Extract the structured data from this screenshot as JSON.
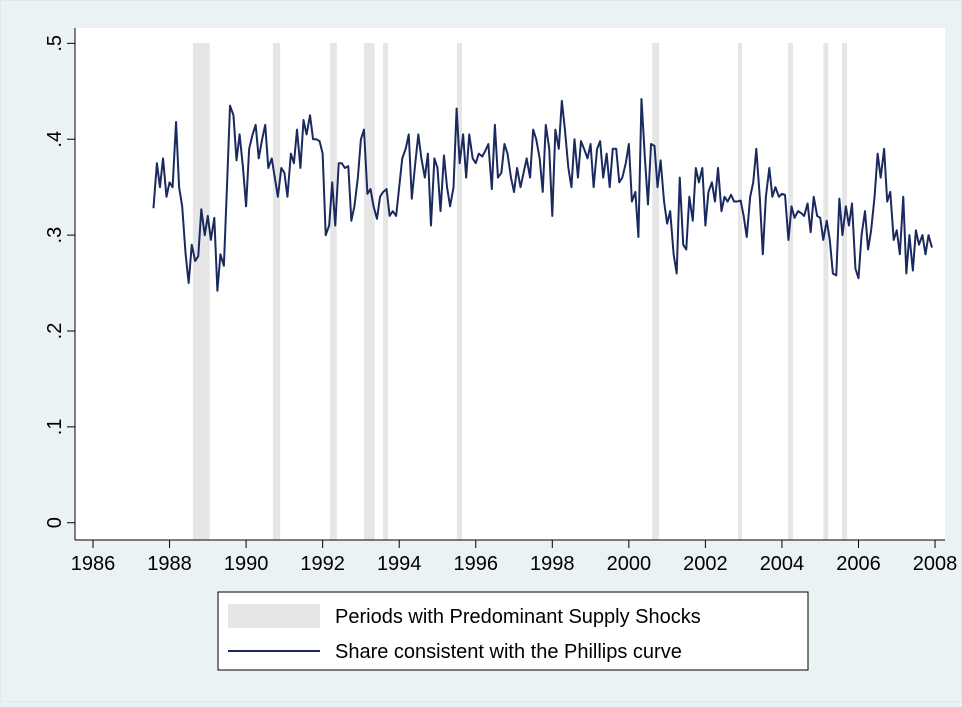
{
  "chart_data": {
    "type": "line",
    "xlim": [
      1985.53,
      2008.26
    ],
    "ylim": [
      -0.018,
      0.516
    ],
    "xticks": [
      1986,
      1988,
      1990,
      1992,
      1994,
      1996,
      1998,
      2000,
      2002,
      2004,
      2006,
      2008
    ],
    "yticks": [
      0,
      {
        "value": 0.1,
        "label": ".1"
      },
      {
        "value": 0.2,
        "label": ".2"
      },
      {
        "value": 0.3,
        "label": ".3"
      },
      {
        "value": 0.4,
        "label": ".4"
      },
      {
        "value": 0.5,
        "label": ".5"
      }
    ],
    "shaded": {
      "name": "Periods with Predominant Supply Shocks",
      "color": "#e6e6e6",
      "periods": [
        [
          1988.61,
          1989.05
        ],
        [
          1990.7,
          1990.89
        ],
        [
          1992.19,
          1992.37
        ],
        [
          1993.08,
          1993.36
        ],
        [
          1993.58,
          1993.71
        ],
        [
          1995.51,
          1995.64
        ],
        [
          2000.61,
          2000.79
        ],
        [
          2002.85,
          2002.96
        ],
        [
          2004.16,
          2004.29
        ],
        [
          2005.08,
          2005.21
        ],
        [
          2005.57,
          2005.7
        ]
      ]
    },
    "x": [
      1987.58,
      1987.67,
      1987.75,
      1987.83,
      1987.92,
      1988.0,
      1988.08,
      1988.17,
      1988.25,
      1988.33,
      1988.42,
      1988.5,
      1988.58,
      1988.67,
      1988.75,
      1988.83,
      1988.92,
      1989.0,
      1989.08,
      1989.17,
      1989.25,
      1989.33,
      1989.42,
      1989.5,
      1989.58,
      1989.67,
      1989.75,
      1989.83,
      1989.92,
      1990.0,
      1990.08,
      1990.17,
      1990.25,
      1990.33,
      1990.42,
      1990.5,
      1990.58,
      1990.67,
      1990.75,
      1990.83,
      1990.92,
      1991.0,
      1991.08,
      1991.17,
      1991.25,
      1991.33,
      1991.42,
      1991.5,
      1991.58,
      1991.67,
      1991.75,
      1991.83,
      1991.92,
      1992.0,
      1992.08,
      1992.17,
      1992.25,
      1992.33,
      1992.42,
      1992.5,
      1992.58,
      1992.67,
      1992.75,
      1992.83,
      1992.92,
      1993.0,
      1993.08,
      1993.17,
      1993.25,
      1993.33,
      1993.42,
      1993.5,
      1993.58,
      1993.67,
      1993.75,
      1993.83,
      1993.92,
      1994.0,
      1994.08,
      1994.17,
      1994.25,
      1994.33,
      1994.42,
      1994.5,
      1994.58,
      1994.67,
      1994.75,
      1994.83,
      1994.92,
      1995.0,
      1995.08,
      1995.17,
      1995.25,
      1995.33,
      1995.42,
      1995.5,
      1995.58,
      1995.67,
      1995.75,
      1995.83,
      1995.92,
      1996.0,
      1996.08,
      1996.17,
      1996.25,
      1996.33,
      1996.42,
      1996.5,
      1996.58,
      1996.67,
      1996.75,
      1996.83,
      1996.92,
      1997.0,
      1997.08,
      1997.17,
      1997.25,
      1997.33,
      1997.42,
      1997.5,
      1997.58,
      1997.67,
      1997.75,
      1997.83,
      1997.92,
      1998.0,
      1998.08,
      1998.17,
      1998.25,
      1998.33,
      1998.42,
      1998.5,
      1998.58,
      1998.67,
      1998.75,
      1998.83,
      1998.92,
      1999.0,
      1999.08,
      1999.17,
      1999.25,
      1999.33,
      1999.42,
      1999.5,
      1999.58,
      1999.67,
      1999.75,
      1999.83,
      1999.92,
      2000.0,
      2000.08,
      2000.17,
      2000.25,
      2000.33,
      2000.42,
      2000.5,
      2000.58,
      2000.67,
      2000.75,
      2000.83,
      2000.92,
      2001.0,
      2001.08,
      2001.17,
      2001.25,
      2001.33,
      2001.42,
      2001.5,
      2001.58,
      2001.67,
      2001.75,
      2001.83,
      2001.92,
      2002.0,
      2002.08,
      2002.17,
      2002.25,
      2002.33,
      2002.42,
      2002.5,
      2002.58,
      2002.67,
      2002.75,
      2002.83,
      2002.92,
      2003.0,
      2003.08,
      2003.17,
      2003.25,
      2003.33,
      2003.42,
      2003.5,
      2003.58,
      2003.67,
      2003.75,
      2003.83,
      2003.92,
      2004.0,
      2004.08,
      2004.17,
      2004.25,
      2004.33,
      2004.42,
      2004.5,
      2004.58,
      2004.67,
      2004.75,
      2004.83,
      2004.92,
      2005.0,
      2005.08,
      2005.17,
      2005.25,
      2005.33,
      2005.42,
      2005.5,
      2005.58,
      2005.67,
      2005.75,
      2005.83,
      2005.92,
      2006.0,
      2006.08,
      2006.17,
      2006.25,
      2006.33,
      2006.42,
      2006.5,
      2006.58,
      2006.67,
      2006.75,
      2006.83,
      2006.92,
      2007.0,
      2007.08,
      2007.17,
      2007.25,
      2007.33,
      2007.42,
      2007.5,
      2007.58,
      2007.67,
      2007.75,
      2007.83,
      2007.92
    ],
    "series": [
      {
        "name": "Share consistent with the Phillips curve",
        "color": "#1a2a5e",
        "values": [
          0.328,
          0.375,
          0.35,
          0.38,
          0.34,
          0.355,
          0.35,
          0.418,
          0.35,
          0.33,
          0.28,
          0.25,
          0.29,
          0.273,
          0.278,
          0.327,
          0.3,
          0.32,
          0.295,
          0.318,
          0.242,
          0.28,
          0.268,
          0.35,
          0.435,
          0.425,
          0.378,
          0.405,
          0.37,
          0.33,
          0.39,
          0.405,
          0.415,
          0.38,
          0.4,
          0.415,
          0.37,
          0.38,
          0.36,
          0.34,
          0.37,
          0.365,
          0.34,
          0.385,
          0.375,
          0.41,
          0.37,
          0.42,
          0.405,
          0.425,
          0.4,
          0.4,
          0.398,
          0.385,
          0.3,
          0.31,
          0.355,
          0.31,
          0.375,
          0.375,
          0.37,
          0.372,
          0.315,
          0.33,
          0.36,
          0.4,
          0.41,
          0.343,
          0.348,
          0.33,
          0.317,
          0.34,
          0.345,
          0.348,
          0.32,
          0.325,
          0.32,
          0.35,
          0.38,
          0.39,
          0.405,
          0.338,
          0.375,
          0.405,
          0.38,
          0.36,
          0.385,
          0.31,
          0.38,
          0.37,
          0.325,
          0.383,
          0.35,
          0.33,
          0.35,
          0.432,
          0.375,
          0.405,
          0.36,
          0.405,
          0.38,
          0.375,
          0.385,
          0.382,
          0.388,
          0.395,
          0.348,
          0.415,
          0.36,
          0.365,
          0.395,
          0.385,
          0.36,
          0.345,
          0.37,
          0.35,
          0.365,
          0.38,
          0.36,
          0.41,
          0.4,
          0.38,
          0.345,
          0.415,
          0.39,
          0.32,
          0.41,
          0.39,
          0.44,
          0.41,
          0.37,
          0.35,
          0.4,
          0.36,
          0.398,
          0.39,
          0.38,
          0.395,
          0.35,
          0.39,
          0.398,
          0.36,
          0.385,
          0.35,
          0.39,
          0.39,
          0.355,
          0.36,
          0.375,
          0.395,
          0.335,
          0.345,
          0.298,
          0.442,
          0.38,
          0.332,
          0.395,
          0.393,
          0.35,
          0.378,
          0.335,
          0.312,
          0.325,
          0.28,
          0.26,
          0.36,
          0.29,
          0.285,
          0.34,
          0.315,
          0.37,
          0.355,
          0.37,
          0.31,
          0.345,
          0.355,
          0.335,
          0.37,
          0.325,
          0.34,
          0.335,
          0.342,
          0.335,
          0.335,
          0.336,
          0.32,
          0.298,
          0.34,
          0.355,
          0.39,
          0.34,
          0.28,
          0.34,
          0.37,
          0.34,
          0.35,
          0.34,
          0.343,
          0.342,
          0.295,
          0.33,
          0.318,
          0.325,
          0.323,
          0.32,
          0.333,
          0.303,
          0.34,
          0.32,
          0.318,
          0.295,
          0.315,
          0.295,
          0.26,
          0.258,
          0.338,
          0.3,
          0.33,
          0.31,
          0.333,
          0.265,
          0.255,
          0.3,
          0.325,
          0.285,
          0.305,
          0.34,
          0.385,
          0.36,
          0.39,
          0.335,
          0.345,
          0.295,
          0.305,
          0.28,
          0.34,
          0.26,
          0.3,
          0.263,
          0.305,
          0.29,
          0.3,
          0.28,
          0.3,
          0.287
        ]
      }
    ]
  }
}
